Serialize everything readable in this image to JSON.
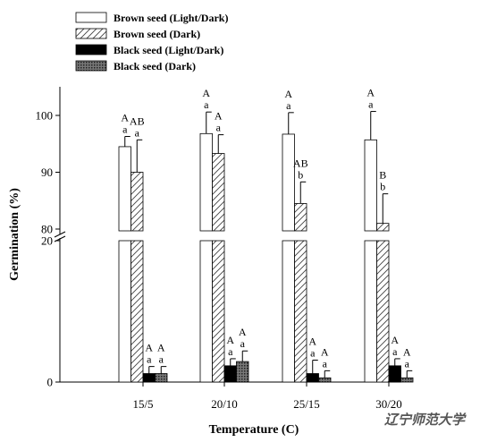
{
  "chart_data": {
    "type": "bar",
    "title": "",
    "xlabel": "Temperature (C)",
    "ylabel": "Germination (%)",
    "categories": [
      "15/5",
      "20/10",
      "25/15",
      "30/20"
    ],
    "y_axis_break": true,
    "lower_segment": {
      "ylim": [
        0,
        20
      ],
      "ticks": [
        0,
        20
      ]
    },
    "upper_segment": {
      "ylim": [
        78,
        104
      ],
      "ticks": [
        80,
        90,
        100
      ]
    },
    "legend_position": "top-left",
    "grid": false,
    "series": [
      {
        "name": "Brown seed (Light/Dark)",
        "pattern": "white",
        "values": [
          94.5,
          96.8,
          96.7,
          95.7
        ],
        "errors": [
          1.8,
          3.8,
          3.8,
          5.0
        ],
        "letters_upper": [
          "A",
          "A",
          "A",
          "A"
        ],
        "letters_lower": [
          "a",
          "a",
          "a",
          "a"
        ]
      },
      {
        "name": "Brown seed (Dark)",
        "pattern": "hatch",
        "values": [
          90.0,
          93.3,
          84.5,
          81.0
        ],
        "errors": [
          5.7,
          3.3,
          3.8,
          5.2
        ],
        "letters_upper": [
          "AB",
          "A",
          "AB",
          "B"
        ],
        "letters_lower": [
          "a",
          "a",
          "b",
          "b"
        ]
      },
      {
        "name": "Black seed (Light/Dark)",
        "pattern": "black",
        "values": [
          1.2,
          2.3,
          1.2,
          2.3
        ],
        "errors": [
          1.0,
          1.0,
          1.9,
          1.0
        ],
        "letters_upper": [
          "A",
          "A",
          "A",
          "A"
        ],
        "letters_lower": [
          "a",
          "a",
          "a",
          "a"
        ]
      },
      {
        "name": "Black seed (Dark)",
        "pattern": "grid",
        "values": [
          1.2,
          2.9,
          0.6,
          0.6
        ],
        "errors": [
          1.0,
          1.5,
          1.0,
          1.0
        ],
        "letters_upper": [
          "A",
          "A",
          "A",
          "A"
        ],
        "letters_lower": [
          "a",
          "a",
          "a",
          "a"
        ]
      }
    ]
  },
  "watermark": "辽宁师范大学"
}
